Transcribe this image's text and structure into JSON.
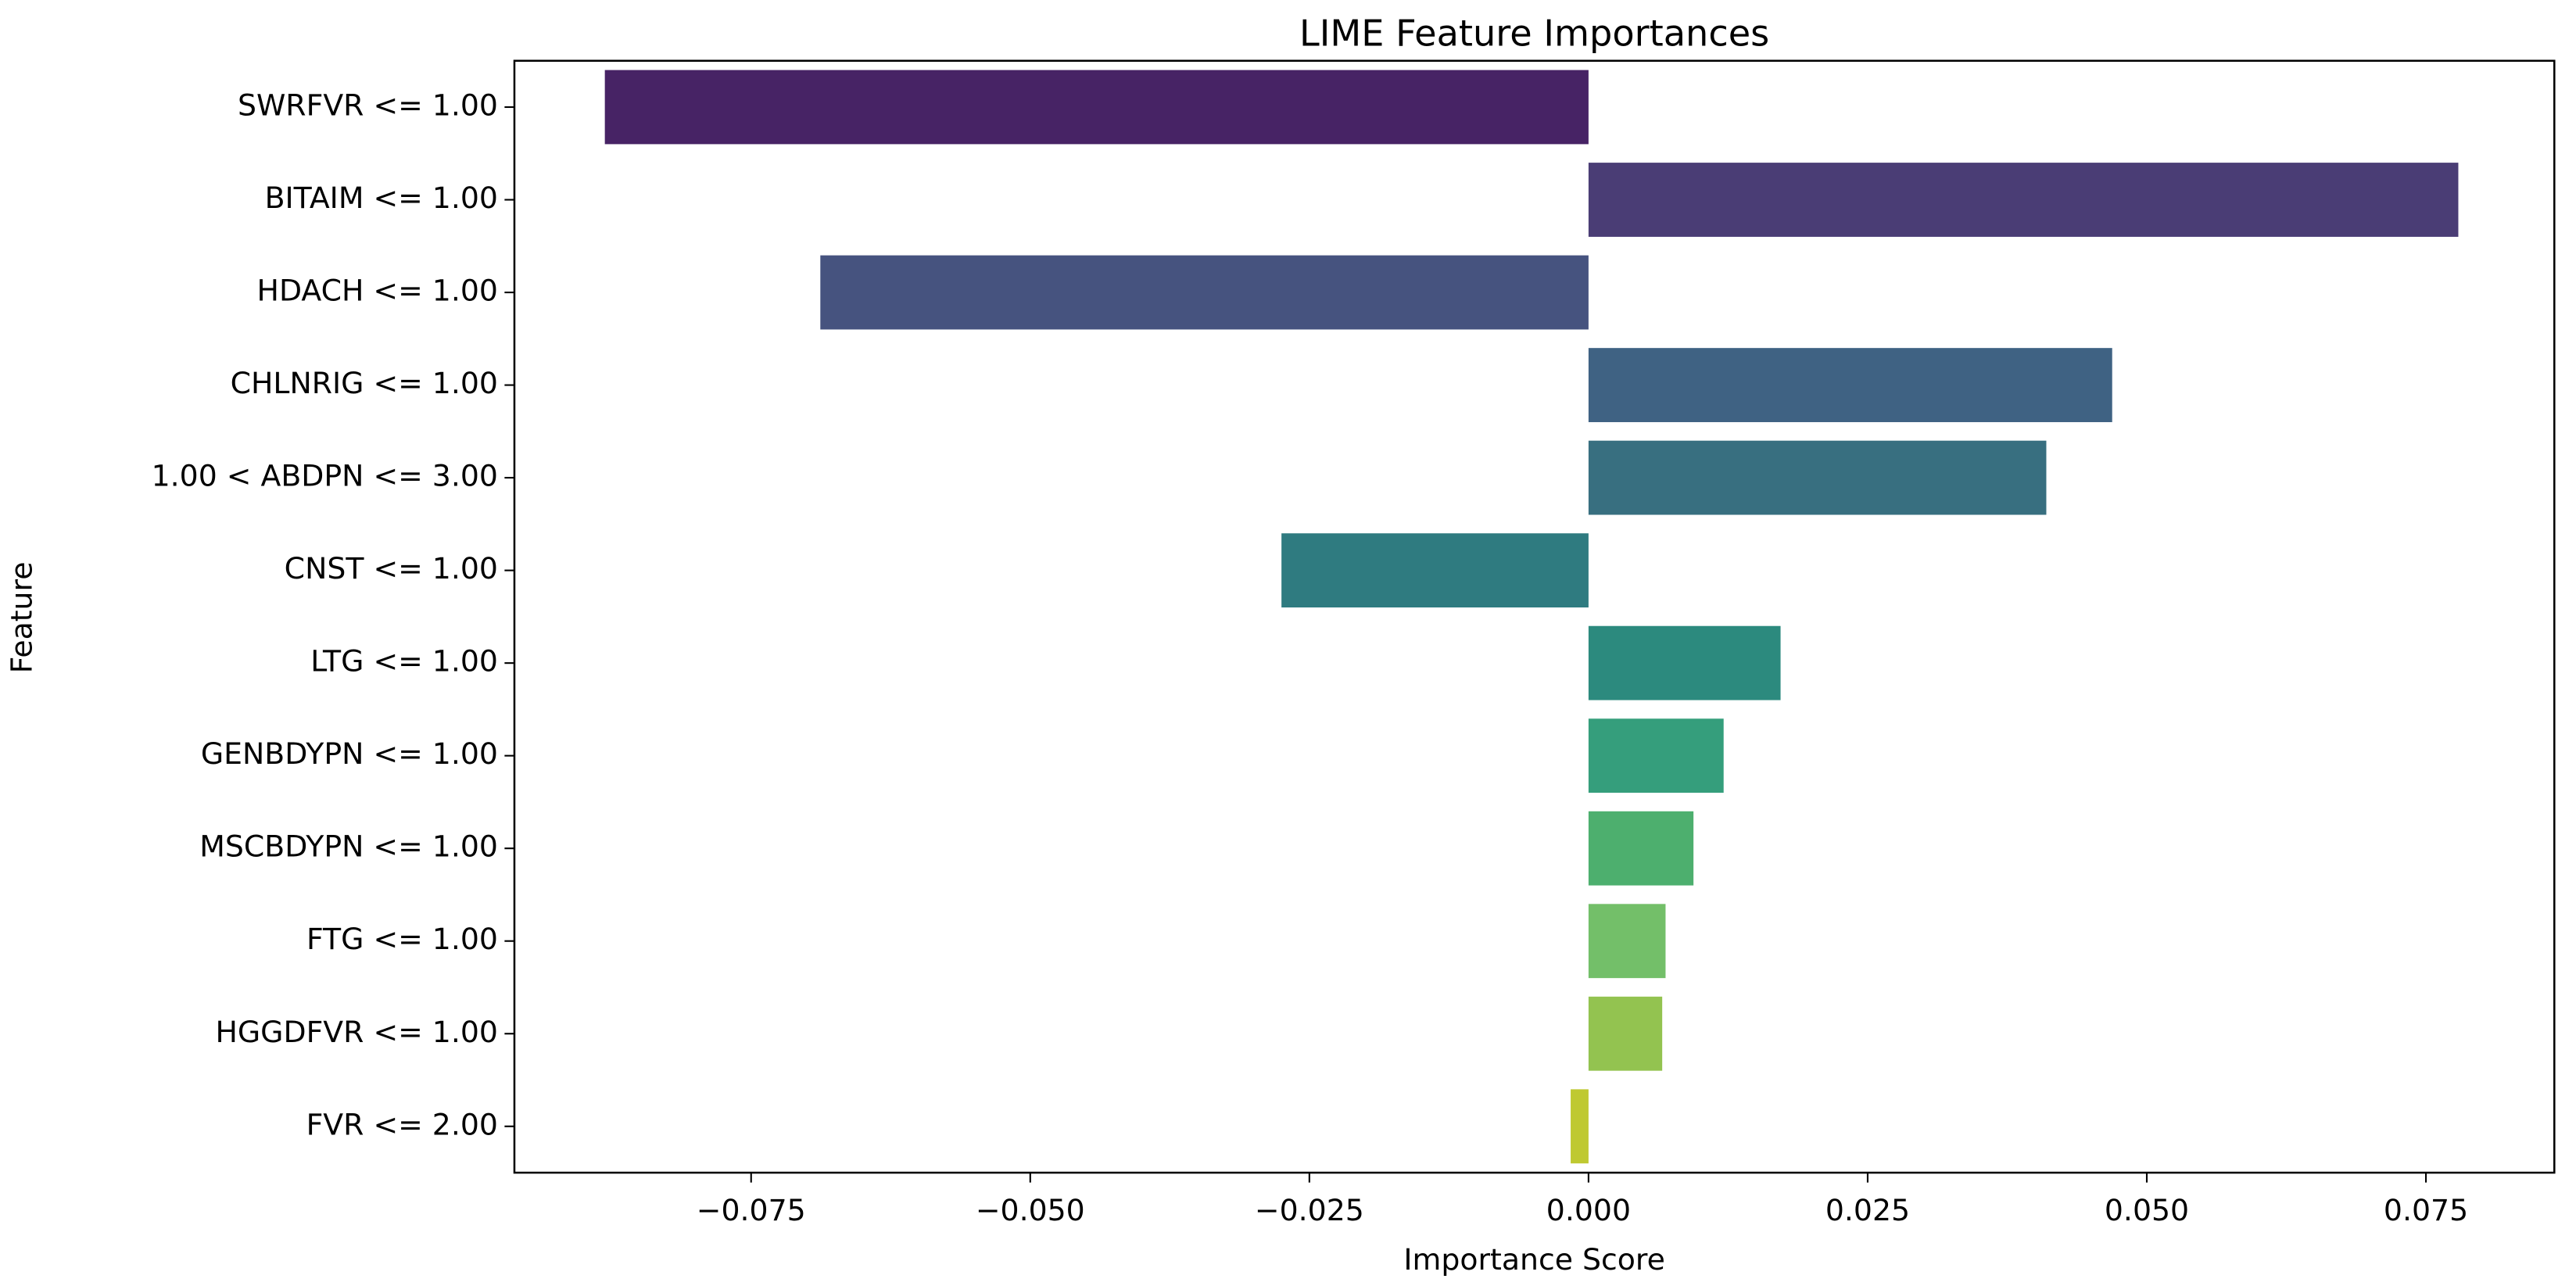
{
  "chart_data": {
    "type": "barh",
    "title": "LIME Feature Importances",
    "x_label": "Importance Score",
    "y_label": "Feature",
    "categories": [
      "SWRFVR <= 1.00",
      "BITAIM <= 1.00",
      "HDACH <= 1.00",
      "CHLNRIG <= 1.00",
      "1.00 < ABDPN <= 3.00",
      "CNST <= 1.00",
      "LTG <= 1.00",
      "GENBDYPN <= 1.00",
      "MSCBDYPN <= 1.00",
      "FTG <= 1.00",
      "HGGDFVR <= 1.00",
      "FVR <= 2.00"
    ],
    "values": [
      -0.0881,
      0.0779,
      -0.0688,
      0.0469,
      0.041,
      -0.0275,
      0.0172,
      0.0121,
      0.0094,
      0.0069,
      0.0066,
      -0.0016
    ],
    "colors": [
      "#472365",
      "#4a3d75",
      "#46537f",
      "#3f6283",
      "#386f80",
      "#2f7b80",
      "#2c8a7e",
      "#359e7c",
      "#4daf6e",
      "#73bf69",
      "#93c350",
      "#bfc931"
    ],
    "xlim": [
      -0.0962,
      0.0865
    ],
    "xticks": [
      {
        "value": -0.075,
        "label": "−0.075"
      },
      {
        "value": -0.05,
        "label": "−0.050"
      },
      {
        "value": -0.025,
        "label": "−0.025"
      },
      {
        "value": 0,
        "label": "0.000"
      },
      {
        "value": 0.025,
        "label": "0.025"
      },
      {
        "value": 0.05,
        "label": "0.050"
      },
      {
        "value": 0.075,
        "label": "0.075"
      }
    ],
    "grid": false
  }
}
